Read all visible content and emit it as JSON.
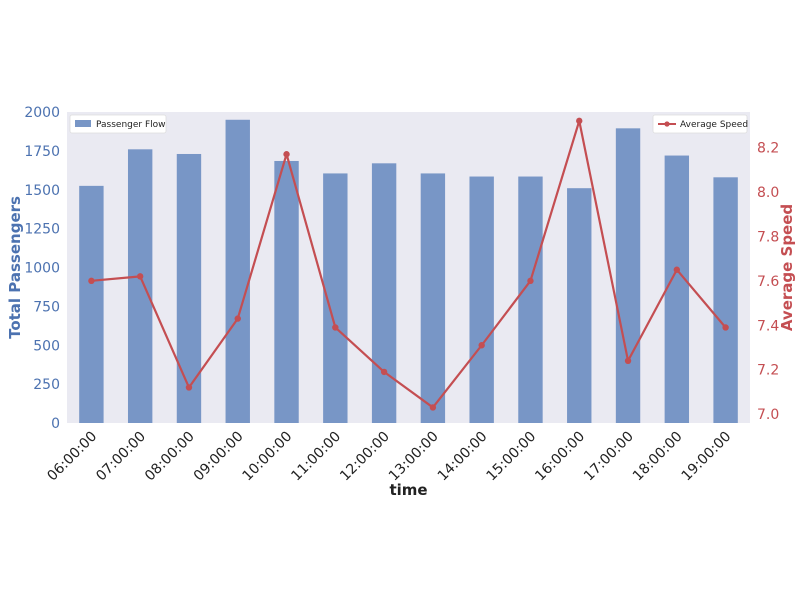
{
  "chart_data": {
    "type": "bar+line",
    "xlabel": "time",
    "categories": [
      "06:00:00",
      "07:00:00",
      "08:00:00",
      "09:00:00",
      "10:00:00",
      "11:00:00",
      "12:00:00",
      "13:00:00",
      "14:00:00",
      "15:00:00",
      "16:00:00",
      "17:00:00",
      "18:00:00",
      "19:00:00"
    ],
    "series": [
      {
        "name": "Passenger Flow",
        "type": "bar",
        "axis": "left",
        "values": [
          1525,
          1760,
          1730,
          1950,
          1685,
          1605,
          1670,
          1605,
          1585,
          1585,
          1510,
          1895,
          1720,
          1580
        ]
      },
      {
        "name": "Average Speed",
        "type": "line",
        "axis": "right",
        "values": [
          7.6,
          7.62,
          7.12,
          7.43,
          8.17,
          7.39,
          7.19,
          7.03,
          7.31,
          7.6,
          8.32,
          7.24,
          7.65,
          7.39
        ]
      }
    ],
    "y_left": {
      "label": "Total Passengers",
      "ylim": [
        0,
        2000
      ],
      "ticks": [
        "0",
        "250",
        "500",
        "750",
        "1000",
        "1250",
        "1500",
        "1750",
        "2000"
      ],
      "color": "#4c72b0"
    },
    "y_right": {
      "label": "Average Speed",
      "ylim": [
        6.96,
        8.36
      ],
      "ticks": [
        "7.0",
        "7.2",
        "7.4",
        "7.6",
        "7.8",
        "8.0",
        "8.2"
      ],
      "color": "#c44e52"
    },
    "grid": false,
    "legends": {
      "bar": "top-left",
      "line": "top-right"
    },
    "colors": {
      "bar": "#7896c6",
      "line": "#c44e52",
      "plot_background": "#eaeaf2"
    }
  }
}
